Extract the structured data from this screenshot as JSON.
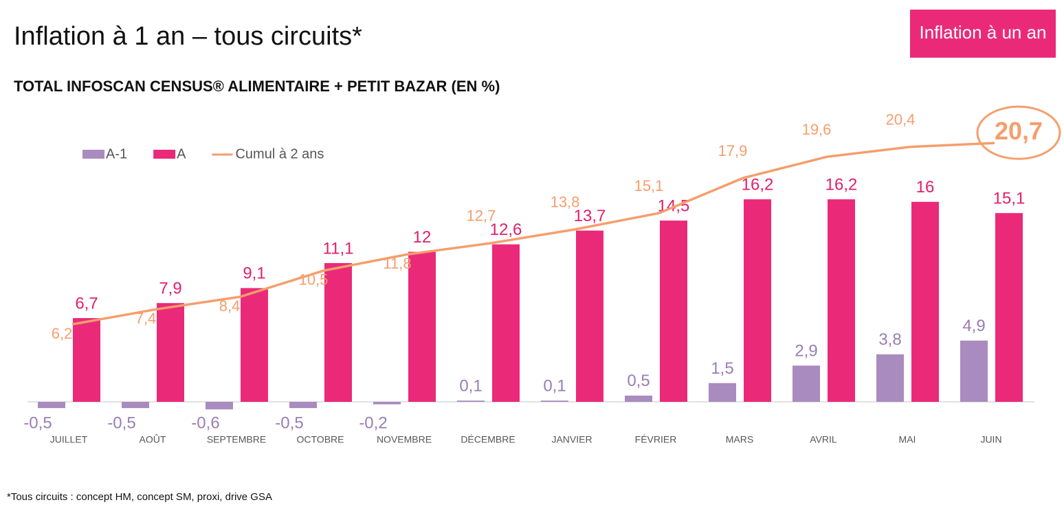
{
  "chart_data": {
    "type": "bar-line",
    "title": "Inflation à 1 an – tous circuits*",
    "badge": "Inflation à un an",
    "subtitle": "TOTAL INFOSCAN CENSUS® ALIMENTAIRE + PETIT BAZAR (EN %)",
    "footnote": "*Tous circuits : concept HM, concept SM, proxi, drive GSA",
    "categories": [
      "JUILLET",
      "AOÛT",
      "SEPTEMBRE",
      "OCTOBRE",
      "NOVEMBRE",
      "DÉCEMBRE",
      "JANVIER",
      "FÉVRIER",
      "MARS",
      "AVRIL",
      "MAI",
      "JUIN"
    ],
    "series": [
      {
        "name": "A-1",
        "type": "bar",
        "color": "#a98bbf",
        "values": [
          -0.5,
          -0.5,
          -0.6,
          -0.5,
          -0.2,
          0.1,
          0.1,
          0.5,
          1.5,
          2.9,
          3.8,
          4.9
        ],
        "value_labels": [
          "-0,5",
          "-0,5",
          "-0,6",
          "-0,5",
          "-0,2",
          "0,1",
          "0,1",
          "0,5",
          "1,5",
          "2,9",
          "3,8",
          "4,9"
        ]
      },
      {
        "name": "A",
        "type": "bar",
        "color": "#ea2a78",
        "values": [
          6.7,
          7.9,
          9.1,
          11.1,
          12,
          12.6,
          13.7,
          14.5,
          16.2,
          16.2,
          16,
          15.1
        ],
        "value_labels": [
          "6,7",
          "7,9",
          "9,1",
          "11,1",
          "12",
          "12,6",
          "13,7",
          "14,5",
          "16,2",
          "16,2",
          "16",
          "15,1"
        ]
      },
      {
        "name": "Cumul à 2 ans",
        "type": "line",
        "color": "#f59e6c",
        "values": [
          6.2,
          7.4,
          8.4,
          10.5,
          11.8,
          12.7,
          13.8,
          15.1,
          17.9,
          19.6,
          20.4,
          20.7
        ],
        "value_labels": [
          "6,2",
          "7,4",
          "8,4",
          "10,5",
          "11,8",
          "12,7",
          "13,8",
          "15,1",
          "17,9",
          "19,6",
          "20,4",
          "20,7"
        ]
      }
    ]
  }
}
